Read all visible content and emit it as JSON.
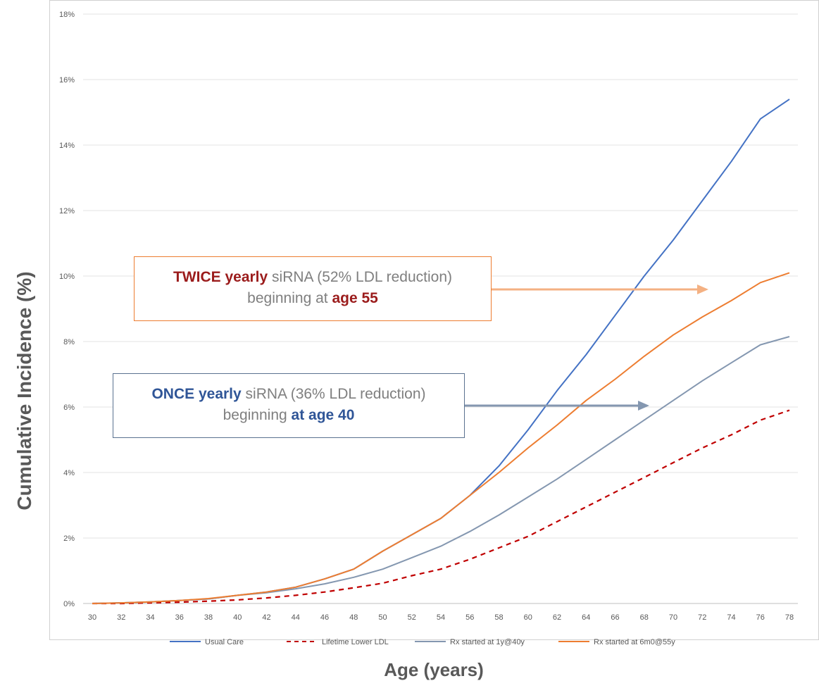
{
  "chart_data": {
    "type": "line",
    "xlabel": "Age (years)",
    "ylabel": "Cumulative Incidence (%)",
    "xlim": [
      30,
      78
    ],
    "ylim": [
      0,
      18
    ],
    "x_ticks": [
      "30",
      "32",
      "34",
      "36",
      "38",
      "40",
      "42",
      "44",
      "46",
      "48",
      "50",
      "52",
      "54",
      "56",
      "58",
      "60",
      "62",
      "64",
      "66",
      "68",
      "70",
      "72",
      "74",
      "76",
      "78"
    ],
    "y_ticks": [
      "0%",
      "2%",
      "4%",
      "6%",
      "8%",
      "10%",
      "12%",
      "14%",
      "16%",
      "18%"
    ],
    "grid": "horizontal",
    "legend_position": "bottom",
    "series": [
      {
        "name": "Usual Care",
        "color": "#4472c4",
        "style": "solid",
        "points": [
          [
            30,
            0
          ],
          [
            32,
            0.02
          ],
          [
            34,
            0.05
          ],
          [
            36,
            0.09
          ],
          [
            38,
            0.14
          ],
          [
            40,
            0.25
          ],
          [
            42,
            0.35
          ],
          [
            44,
            0.5
          ],
          [
            46,
            0.75
          ],
          [
            48,
            1.05
          ],
          [
            50,
            1.6
          ],
          [
            52,
            2.1
          ],
          [
            54,
            2.6
          ],
          [
            56,
            3.3
          ],
          [
            58,
            4.2
          ],
          [
            60,
            5.3
          ],
          [
            62,
            6.5
          ],
          [
            64,
            7.6
          ],
          [
            66,
            8.8
          ],
          [
            68,
            10.0
          ],
          [
            70,
            11.1
          ],
          [
            72,
            12.3
          ],
          [
            74,
            13.5
          ],
          [
            76,
            14.8
          ],
          [
            78,
            15.4
          ]
        ]
      },
      {
        "name": "Lifetime Lower LDL",
        "color": "#c00000",
        "style": "dashed",
        "points": [
          [
            30,
            0
          ],
          [
            32,
            0
          ],
          [
            34,
            0.02
          ],
          [
            36,
            0.04
          ],
          [
            38,
            0.07
          ],
          [
            40,
            0.11
          ],
          [
            42,
            0.17
          ],
          [
            44,
            0.25
          ],
          [
            46,
            0.35
          ],
          [
            48,
            0.48
          ],
          [
            50,
            0.62
          ],
          [
            52,
            0.85
          ],
          [
            54,
            1.05
          ],
          [
            56,
            1.35
          ],
          [
            58,
            1.7
          ],
          [
            60,
            2.05
          ],
          [
            62,
            2.5
          ],
          [
            64,
            2.95
          ],
          [
            66,
            3.4
          ],
          [
            68,
            3.85
          ],
          [
            70,
            4.3
          ],
          [
            72,
            4.75
          ],
          [
            74,
            5.15
          ],
          [
            76,
            5.6
          ],
          [
            78,
            5.9
          ]
        ]
      },
      {
        "name": "Rx started at 1y@40y",
        "color": "#8497b0",
        "style": "solid",
        "points": [
          [
            30,
            0
          ],
          [
            32,
            0.02
          ],
          [
            34,
            0.05
          ],
          [
            36,
            0.09
          ],
          [
            38,
            0.14
          ],
          [
            40,
            0.25
          ],
          [
            42,
            0.33
          ],
          [
            44,
            0.45
          ],
          [
            46,
            0.6
          ],
          [
            48,
            0.8
          ],
          [
            50,
            1.05
          ],
          [
            52,
            1.4
          ],
          [
            54,
            1.75
          ],
          [
            56,
            2.2
          ],
          [
            58,
            2.7
          ],
          [
            60,
            3.25
          ],
          [
            62,
            3.8
          ],
          [
            64,
            4.4
          ],
          [
            66,
            5.0
          ],
          [
            68,
            5.6
          ],
          [
            70,
            6.2
          ],
          [
            72,
            6.8
          ],
          [
            74,
            7.35
          ],
          [
            76,
            7.9
          ],
          [
            78,
            8.15
          ]
        ]
      },
      {
        "name": "Rx started at 6m0@55y",
        "color": "#ed7d31",
        "style": "solid",
        "points": [
          [
            30,
            0
          ],
          [
            32,
            0.02
          ],
          [
            34,
            0.05
          ],
          [
            36,
            0.09
          ],
          [
            38,
            0.15
          ],
          [
            40,
            0.25
          ],
          [
            42,
            0.35
          ],
          [
            44,
            0.5
          ],
          [
            46,
            0.75
          ],
          [
            48,
            1.05
          ],
          [
            50,
            1.6
          ],
          [
            52,
            2.1
          ],
          [
            54,
            2.6
          ],
          [
            56,
            3.3
          ],
          [
            58,
            4.0
          ],
          [
            60,
            4.75
          ],
          [
            62,
            5.45
          ],
          [
            64,
            6.2
          ],
          [
            66,
            6.85
          ],
          [
            68,
            7.55
          ],
          [
            70,
            8.2
          ],
          [
            72,
            8.75
          ],
          [
            74,
            9.25
          ],
          [
            76,
            9.8
          ],
          [
            78,
            10.1
          ]
        ]
      }
    ]
  },
  "annotations": {
    "twice": {
      "strong": "TWICE yearly",
      "text1": " siRNA (52% LDL reduction)",
      "text2": "beginning at ",
      "strong2": "age 55",
      "border_color": "#ed7d31",
      "arrow_color": "#f4b183"
    },
    "once": {
      "strong": "ONCE yearly",
      "text1": " siRNA (36% LDL reduction)",
      "text2": "beginning ",
      "strong2": "at age 40",
      "border_color": "#5a7290",
      "arrow_color": "#8497b0"
    }
  }
}
